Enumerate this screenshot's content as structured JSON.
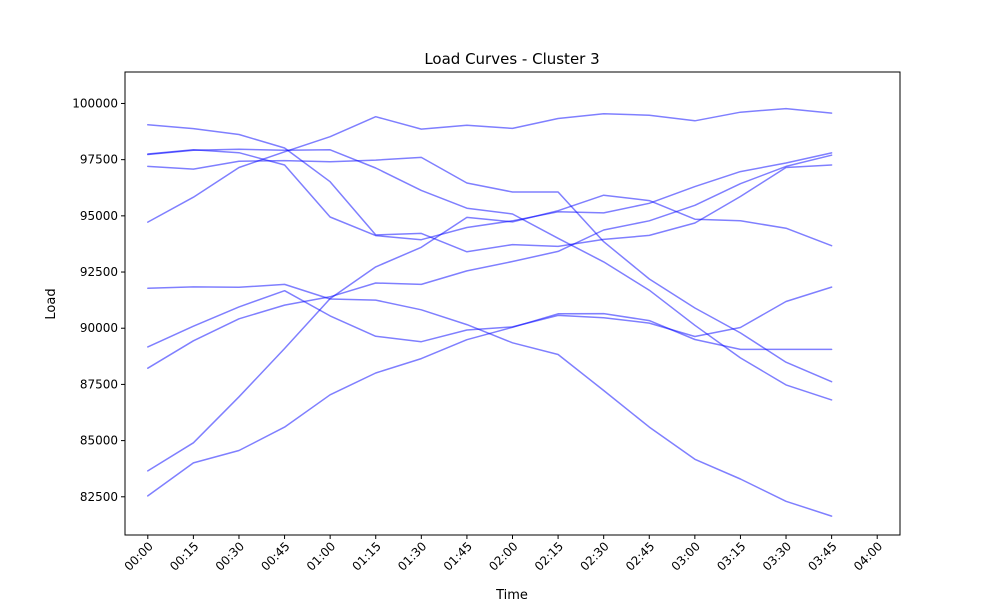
{
  "chart_data": {
    "type": "line",
    "title": "Load Curves - Cluster 3",
    "xlabel": "Time",
    "ylabel": "Load",
    "x_ticks": [
      "00:00",
      "00:15",
      "00:30",
      "00:45",
      "01:00",
      "01:15",
      "01:30",
      "01:45",
      "02:00",
      "02:15",
      "02:30",
      "02:45",
      "03:00",
      "03:15",
      "03:30",
      "03:45",
      "04:00"
    ],
    "x_values": [
      "00:00",
      "00:15",
      "00:30",
      "00:45",
      "01:00",
      "01:15",
      "01:30",
      "01:45",
      "02:00",
      "02:15",
      "02:30",
      "02:45",
      "03:00",
      "03:15",
      "03:30",
      "03:45"
    ],
    "xlim": [
      "23:52:30",
      "04:07:30"
    ],
    "y_ticks": [
      82500,
      85000,
      87500,
      90000,
      92500,
      95000,
      97500,
      100000
    ],
    "ylim": [
      80800,
      101400
    ],
    "grid": false,
    "line_color": "#0000ff",
    "line_alpha": 0.5,
    "series": [
      {
        "values": [
          99050,
          98880,
          98620,
          98020,
          96520,
          94150,
          94220,
          93400,
          93720,
          93640,
          93950,
          94130,
          94680,
          95860,
          97150,
          97260
        ]
      },
      {
        "values": [
          97750,
          97940,
          97810,
          97260,
          94950,
          94120,
          93940,
          94480,
          94780,
          95180,
          95130,
          95560,
          96300,
          96970,
          97350,
          97800
        ]
      },
      {
        "values": [
          94720,
          95830,
          97150,
          97850,
          98520,
          99410,
          98860,
          99030,
          98890,
          99330,
          99540,
          99480,
          99230,
          99610,
          99770,
          99570
        ]
      },
      {
        "values": [
          97200,
          97080,
          97430,
          97460,
          97410,
          97480,
          97600,
          96460,
          96060,
          96060,
          93850,
          92190,
          90900,
          89790,
          88490,
          87620
        ]
      },
      {
        "values": [
          97730,
          97920,
          97960,
          97920,
          97940,
          97130,
          96130,
          95340,
          95080,
          94000,
          92950,
          91690,
          90130,
          88680,
          87480,
          86810
        ]
      },
      {
        "values": [
          91780,
          91840,
          91820,
          91950,
          91300,
          91250,
          90820,
          90160,
          89350,
          88830,
          87230,
          85600,
          84170,
          83290,
          82300,
          81640
        ]
      },
      {
        "values": [
          89170,
          90090,
          90950,
          91670,
          90550,
          89640,
          89400,
          89920,
          90060,
          90570,
          90470,
          90230,
          89630,
          90030,
          91190,
          91830
        ]
      },
      {
        "values": [
          88220,
          89440,
          90420,
          91030,
          91400,
          92010,
          91950,
          92550,
          92970,
          93420,
          94370,
          94780,
          95470,
          96430,
          97200,
          97700
        ]
      },
      {
        "values": [
          83650,
          84900,
          86950,
          89100,
          91320,
          92730,
          93600,
          94930,
          94730,
          95230,
          95920,
          95680,
          94850,
          94780,
          94450,
          93670
        ]
      },
      {
        "values": [
          82540,
          84010,
          84560,
          85600,
          87040,
          88010,
          88650,
          89490,
          90040,
          90640,
          90650,
          90340,
          89500,
          89060,
          89060,
          89060
        ]
      }
    ]
  }
}
